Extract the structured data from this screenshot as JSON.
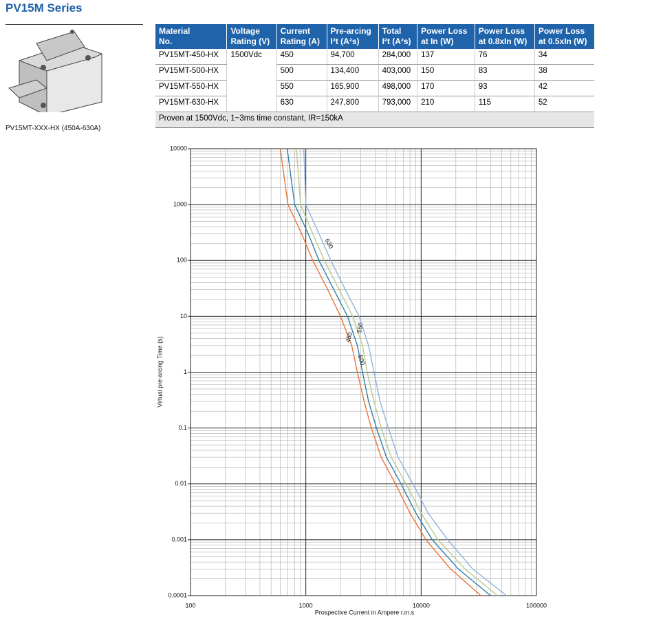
{
  "header": {
    "title": "PV15M Series"
  },
  "image_caption": "PV15MT-XXX-HX (450A-630A)",
  "table": {
    "columns": [
      "Material\nNo.",
      "Voltage\nRating (V)",
      "Current\nRating (A)",
      "Pre-arcing\nI²t (A²s)",
      "Total\nI²t (A²s)",
      "Power Loss\nat In (W)",
      "Power Loss\nat 0.8xIn (W)",
      "Power Loss\nat 0.5xIn (W)"
    ],
    "voltage_rating": "1500Vdc",
    "rows": [
      [
        "PV15MT-450-HX",
        "450",
        "94,700",
        "284,000",
        "137",
        "76",
        "34"
      ],
      [
        "PV15MT-500-HX",
        "500",
        "134,400",
        "403,000",
        "150",
        "83",
        "38"
      ],
      [
        "PV15MT-550-HX",
        "550",
        "165,900",
        "498,000",
        "170",
        "93",
        "42"
      ],
      [
        "PV15MT-630-HX",
        "630",
        "247,800",
        "793,000",
        "210",
        "115",
        "52"
      ]
    ],
    "footnote": "Proven at 1500Vdc, 1~3ms time constant, IR=150kA"
  },
  "chart_data": {
    "type": "line",
    "x_label": "Prospective Current in Ampere r.m.s",
    "y_label": "Virtual pre-arcing Time (s)",
    "log_x": true,
    "log_y": true,
    "grid": true,
    "xlim": [
      100,
      100000
    ],
    "ylim": [
      0.0001,
      10000
    ],
    "xticks": [
      100,
      1000,
      10000,
      100000
    ],
    "yticks": [
      0.0001,
      0.001,
      0.01,
      0.1,
      1,
      10,
      100,
      1000,
      10000
    ],
    "series": [
      {
        "name": "450",
        "color": "#e8743b",
        "x": [
          600,
          700,
          920,
          1150,
          1550,
          2000,
          2500,
          2800,
          3200,
          3700,
          4500,
          6000,
          8000,
          11000,
          18000,
          33000
        ],
        "values": [
          10000,
          1000,
          300,
          100,
          30,
          10,
          3,
          1,
          0.3,
          0.1,
          0.03,
          0.01,
          0.003,
          0.001,
          0.0003,
          0.0001
        ]
      },
      {
        "name": "500",
        "color": "#2f80a8",
        "x": [
          690,
          800,
          1050,
          1300,
          1750,
          2300,
          2800,
          3100,
          3500,
          4100,
          5000,
          6700,
          9000,
          12500,
          21000,
          40000
        ],
        "values": [
          10000,
          1000,
          300,
          100,
          30,
          10,
          3,
          1,
          0.3,
          0.1,
          0.03,
          0.01,
          0.003,
          0.001,
          0.0003,
          0.0001
        ]
      },
      {
        "name": "550",
        "color": "#b8c98e",
        "x": [
          830,
          900,
          1150,
          1450,
          1950,
          2550,
          3100,
          3400,
          3900,
          4500,
          5500,
          7400,
          10000,
          14000,
          24000,
          46000
        ],
        "values": [
          10000,
          1000,
          300,
          100,
          30,
          10,
          3,
          1,
          0.3,
          0.1,
          0.03,
          0.01,
          0.003,
          0.001,
          0.0003,
          0.0001
        ]
      },
      {
        "name": "630",
        "color": "#8fb3d9",
        "x": [
          960,
          1000,
          1300,
          1650,
          2200,
          2900,
          3500,
          3900,
          4400,
          5200,
          6300,
          8500,
          11500,
          17000,
          28000,
          55000
        ],
        "values": [
          10000,
          1000,
          300,
          100,
          30,
          10,
          3,
          1,
          0.3,
          0.1,
          0.03,
          0.01,
          0.003,
          0.001,
          0.0003,
          0.0001
        ]
      }
    ]
  }
}
